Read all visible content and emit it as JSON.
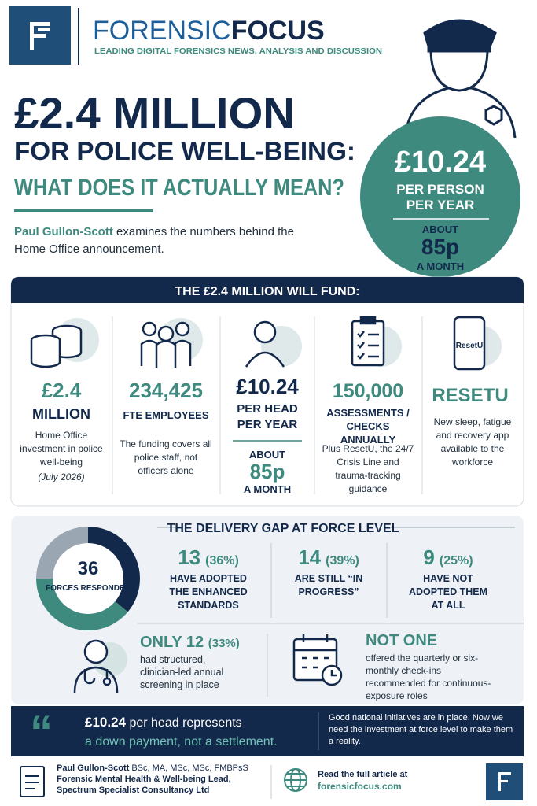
{
  "header": {
    "brand_light": "FORENSIC",
    "brand_bold": "FOCUS",
    "tagline": "LEADING DIGITAL FORENSICS NEWS, ANALYSIS AND DISCUSSION"
  },
  "hero": {
    "title_1": "£2.4 MILLION",
    "title_2": "FOR POLICE WELL-BEING:",
    "title_3": "WHAT DOES IT ACTUALLY MEAN?",
    "author": "Paul Gullon-Scott",
    "intro": "examines the numbers behind the Home Office announcement."
  },
  "badge": {
    "amount": "£10.24",
    "line_1": "PER PERSON",
    "line_2": "PER YEAR",
    "about": "ABOUT",
    "monthly": "85p",
    "month_label": "A MONTH"
  },
  "fund": {
    "heading": "THE £2.4 MILLION WILL FUND:",
    "items": [
      {
        "value": "£2.4",
        "unit": "MILLION",
        "desc": "Home Office investment in police well-being",
        "note": "(July 2026)"
      },
      {
        "value": "234,425",
        "unit": "FTE EMPLOYEES",
        "desc": "The funding covers all police staff, not officers alone"
      },
      {
        "value": "£10.24",
        "unit": "PER HEAD PER YEAR",
        "about": "ABOUT",
        "monthly": "85p",
        "month_label": "A MONTH"
      },
      {
        "value": "150,000",
        "unit": "ASSESSMENTS / CHECKS ANNUALLY",
        "desc": "Plus ResetU, the 24/7 Crisis Line and trauma-tracking guidance"
      },
      {
        "icon_label": "ResetU",
        "value": "RESETU",
        "desc": "New sleep, fatigue and recovery app available to the workforce"
      }
    ]
  },
  "delivery": {
    "heading": "THE DELIVERY GAP AT FORCE LEVEL",
    "total": 36,
    "total_label": "FORCES RESPONDED",
    "stats": [
      {
        "count": 13,
        "share": "(36%)",
        "label": "HAVE ADOPTED THE ENHANCED STANDARDS",
        "color": "#13294b"
      },
      {
        "count": 14,
        "share": "(39%)",
        "label": "ARE STILL “IN PROGRESS”",
        "color": "#3e8a7f"
      },
      {
        "count": 9,
        "share": "(25%)",
        "label": "HAVE NOT ADOPTED THEM AT ALL",
        "color": "#9aa6b2"
      }
    ],
    "screening": {
      "lead": "ONLY 12",
      "share": "(33%)",
      "desc": "had structured, clinician-led annual screening in place"
    },
    "checkins": {
      "lead": "NOT ONE",
      "desc": "offered the quarterly or six-monthly check-ins recommended for continuous-exposure roles"
    }
  },
  "quote": {
    "line_1_bold": "£10.24",
    "line_1": "per head represents",
    "line_2": "a down payment, not a settlement.",
    "aside": "Good national initiatives are in place. Now we need the investment at force level to make them a reality."
  },
  "footer": {
    "name": "Paul Gullon-Scott",
    "credentials": "BSc, MA, MSc, MSc, FMBPsS",
    "role": "Forensic Mental Health & Well-being Lead,",
    "org": "Spectrum Specialist Consultancy Ltd",
    "read": "Read the full article at",
    "url": "forensicfocus.com"
  }
}
